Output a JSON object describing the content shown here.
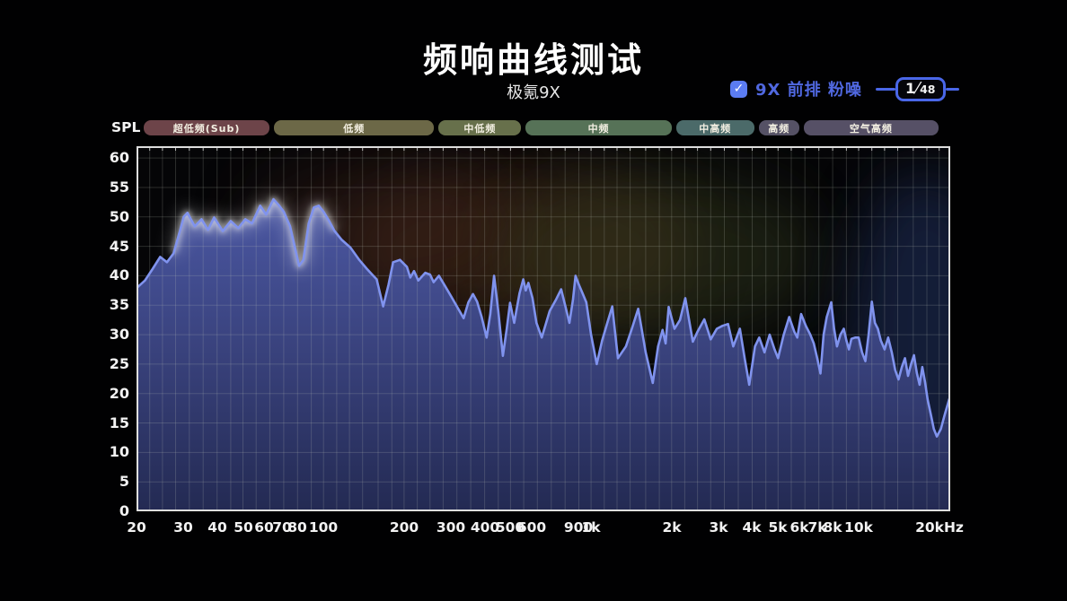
{
  "header": {
    "title": "频响曲线测试",
    "subtitle": "极氪9X"
  },
  "legend": {
    "checkbox_checked": true,
    "label": "9X 前排 粉噪",
    "counter_current": "1",
    "counter_total": "48",
    "accent_color": "#4a67e8",
    "checkbox_color": "#5b7cf2",
    "label_color": "#5068e0"
  },
  "axis": {
    "spl_label": "SPL",
    "y_ticks": [
      60,
      55,
      50,
      45,
      40,
      35,
      30,
      25,
      20,
      15,
      10,
      5,
      0
    ],
    "x_ticks": [
      {
        "f": 20,
        "label": "20"
      },
      {
        "f": 30,
        "label": "30"
      },
      {
        "f": 40,
        "label": "40"
      },
      {
        "f": 50,
        "label": "50"
      },
      {
        "f": 60,
        "label": "60"
      },
      {
        "f": 70,
        "label": "70"
      },
      {
        "f": 80,
        "label": "80"
      },
      {
        "f": 100,
        "label": "100"
      },
      {
        "f": 200,
        "label": "200"
      },
      {
        "f": 300,
        "label": "300"
      },
      {
        "f": 400,
        "label": "400"
      },
      {
        "f": 500,
        "label": "500"
      },
      {
        "f": 600,
        "label": "600"
      },
      {
        "f": 900,
        "label": "900"
      },
      {
        "f": 1000,
        "label": "1k"
      },
      {
        "f": 2000,
        "label": "2k"
      },
      {
        "f": 3000,
        "label": "3k"
      },
      {
        "f": 4000,
        "label": "4k"
      },
      {
        "f": 5000,
        "label": "5k"
      },
      {
        "f": 6000,
        "label": "6k"
      },
      {
        "f": 7000,
        "label": "7k"
      },
      {
        "f": 8000,
        "label": "8k"
      },
      {
        "f": 10000,
        "label": "10k"
      },
      {
        "f": 20000,
        "label": "20kHz"
      }
    ]
  },
  "bands": [
    {
      "label": "超低频(Sub)",
      "freq_range_hz": [
        20,
        60
      ],
      "color": "#6d4449",
      "weight": 140
    },
    {
      "label": "低频",
      "freq_range_hz": [
        60,
        250
      ],
      "color": "#6c6847",
      "weight": 178
    },
    {
      "label": "中低频",
      "freq_range_hz": [
        250,
        500
      ],
      "color": "#67704b",
      "weight": 92
    },
    {
      "label": "中频",
      "freq_range_hz": [
        500,
        2000
      ],
      "color": "#567257",
      "weight": 162
    },
    {
      "label": "中高频",
      "freq_range_hz": [
        2000,
        4000
      ],
      "color": "#4b6a69",
      "weight": 87
    },
    {
      "label": "高频",
      "freq_range_hz": [
        4000,
        6000
      ],
      "color": "#555165",
      "weight": 45
    },
    {
      "label": "空气高频",
      "freq_range_hz": [
        6000,
        20000
      ],
      "color": "#565066",
      "weight": 150
    }
  ],
  "chart_data": {
    "type": "area",
    "title": "频响曲线测试",
    "subtitle": "极氪9X",
    "series_name": "9X 前排 粉噪",
    "x_unit": "Hz",
    "y_unit": "dB SPL",
    "x_scale": "log",
    "x_range": [
      20,
      22000
    ],
    "y_range": [
      0,
      62
    ],
    "y_tick_step": 5,
    "grid": true,
    "legend_position": "top-right",
    "line_color": "#8093ee",
    "fill_top_color": "#4d5aa8",
    "fill_bottom_color": "#242b55",
    "glow_range_hz": [
      27,
      115
    ],
    "points": [
      [
        20,
        37.9
      ],
      [
        21.5,
        39.2
      ],
      [
        23,
        41.2
      ],
      [
        24.5,
        43.2
      ],
      [
        26,
        42.3
      ],
      [
        27.5,
        43.8
      ],
      [
        29,
        47.5
      ],
      [
        30,
        50
      ],
      [
        31,
        50.7
      ],
      [
        33,
        48.4
      ],
      [
        35,
        49.6
      ],
      [
        37,
        47.8
      ],
      [
        39,
        49.9
      ],
      [
        42,
        47.6
      ],
      [
        45,
        49.3
      ],
      [
        48,
        48.1
      ],
      [
        51,
        49.6
      ],
      [
        54,
        48.9
      ],
      [
        58,
        51.9
      ],
      [
        61,
        50.4
      ],
      [
        65,
        53
      ],
      [
        68,
        52
      ],
      [
        71,
        50.9
      ],
      [
        75,
        48.4
      ],
      [
        78,
        45
      ],
      [
        81,
        41.7
      ],
      [
        84,
        42.7
      ],
      [
        88,
        48.9
      ],
      [
        92,
        51.6
      ],
      [
        96,
        51.9
      ],
      [
        100,
        50.9
      ],
      [
        105,
        49.3
      ],
      [
        110,
        47.6
      ],
      [
        117,
        46.1
      ],
      [
        126,
        44.8
      ],
      [
        136,
        42.7
      ],
      [
        145,
        41.2
      ],
      [
        152,
        40.2
      ],
      [
        158,
        39.4
      ],
      [
        167,
        34.8
      ],
      [
        175,
        38.5
      ],
      [
        182,
        42.3
      ],
      [
        193,
        42.7
      ],
      [
        205,
        41.5
      ],
      [
        211,
        39.7
      ],
      [
        218,
        40.8
      ],
      [
        226,
        39.2
      ],
      [
        240,
        40.5
      ],
      [
        250,
        40.2
      ],
      [
        258,
        38.9
      ],
      [
        270,
        40
      ],
      [
        285,
        38.2
      ],
      [
        300,
        36.5
      ],
      [
        315,
        34.8
      ],
      [
        334,
        32.8
      ],
      [
        348,
        35.5
      ],
      [
        362,
        36.9
      ],
      [
        375,
        35.6
      ],
      [
        390,
        33
      ],
      [
        407,
        29.5
      ],
      [
        420,
        33.5
      ],
      [
        434,
        40
      ],
      [
        450,
        34
      ],
      [
        468,
        26.4
      ],
      [
        484,
        31
      ],
      [
        498,
        35.4
      ],
      [
        516,
        32
      ],
      [
        540,
        37
      ],
      [
        558,
        39.4
      ],
      [
        570,
        37.5
      ],
      [
        583,
        38.8
      ],
      [
        604,
        36.2
      ],
      [
        625,
        32
      ],
      [
        654,
        29.5
      ],
      [
        700,
        34
      ],
      [
        740,
        36
      ],
      [
        773,
        37.7
      ],
      [
        800,
        35
      ],
      [
        830,
        32
      ],
      [
        856,
        36
      ],
      [
        875,
        40
      ],
      [
        900,
        38.5
      ],
      [
        930,
        37
      ],
      [
        960,
        35.5
      ],
      [
        1000,
        30
      ],
      [
        1050,
        25
      ],
      [
        1100,
        29
      ],
      [
        1150,
        32
      ],
      [
        1200,
        34.8
      ],
      [
        1260,
        26
      ],
      [
        1350,
        28
      ],
      [
        1420,
        31
      ],
      [
        1500,
        34.4
      ],
      [
        1600,
        27
      ],
      [
        1700,
        21.8
      ],
      [
        1780,
        28
      ],
      [
        1850,
        30.8
      ],
      [
        1900,
        28.5
      ],
      [
        1950,
        34.7
      ],
      [
        2050,
        31
      ],
      [
        2150,
        32.5
      ],
      [
        2250,
        36.2
      ],
      [
        2400,
        28.8
      ],
      [
        2500,
        30.5
      ],
      [
        2650,
        32.6
      ],
      [
        2800,
        29.2
      ],
      [
        2950,
        31
      ],
      [
        3100,
        31.5
      ],
      [
        3250,
        31.8
      ],
      [
        3400,
        28
      ],
      [
        3600,
        31
      ],
      [
        3750,
        26
      ],
      [
        3900,
        21.5
      ],
      [
        4100,
        28
      ],
      [
        4250,
        29.5
      ],
      [
        4450,
        27
      ],
      [
        4650,
        30
      ],
      [
        4850,
        27.5
      ],
      [
        5000,
        26
      ],
      [
        5250,
        30
      ],
      [
        5500,
        33
      ],
      [
        5750,
        30.5
      ],
      [
        5900,
        29.5
      ],
      [
        6100,
        33.5
      ],
      [
        6350,
        31.5
      ],
      [
        6600,
        30
      ],
      [
        6800,
        28.5
      ],
      [
        7000,
        26
      ],
      [
        7200,
        23.4
      ],
      [
        7400,
        30
      ],
      [
        7600,
        33
      ],
      [
        7900,
        35.5
      ],
      [
        8100,
        31
      ],
      [
        8300,
        28
      ],
      [
        8550,
        30
      ],
      [
        8800,
        31
      ],
      [
        9000,
        29
      ],
      [
        9200,
        27.5
      ],
      [
        9400,
        29.3
      ],
      [
        9700,
        29.5
      ],
      [
        10000,
        29.5
      ],
      [
        10300,
        27
      ],
      [
        10600,
        25.5
      ],
      [
        10900,
        30
      ],
      [
        11200,
        35.6
      ],
      [
        11500,
        32
      ],
      [
        11800,
        31
      ],
      [
        12100,
        29
      ],
      [
        12500,
        27.5
      ],
      [
        12900,
        29.5
      ],
      [
        13300,
        27
      ],
      [
        13700,
        24
      ],
      [
        14100,
        22.4
      ],
      [
        14500,
        24.5
      ],
      [
        14900,
        26
      ],
      [
        15300,
        23
      ],
      [
        15700,
        25
      ],
      [
        16100,
        26.5
      ],
      [
        16500,
        23.5
      ],
      [
        16900,
        21.5
      ],
      [
        17300,
        24.5
      ],
      [
        17700,
        22
      ],
      [
        18100,
        19
      ],
      [
        18600,
        16.5
      ],
      [
        19100,
        14
      ],
      [
        19600,
        12.7
      ],
      [
        20300,
        14
      ],
      [
        21000,
        16.5
      ],
      [
        21800,
        19
      ],
      [
        22000,
        19.5
      ]
    ]
  }
}
